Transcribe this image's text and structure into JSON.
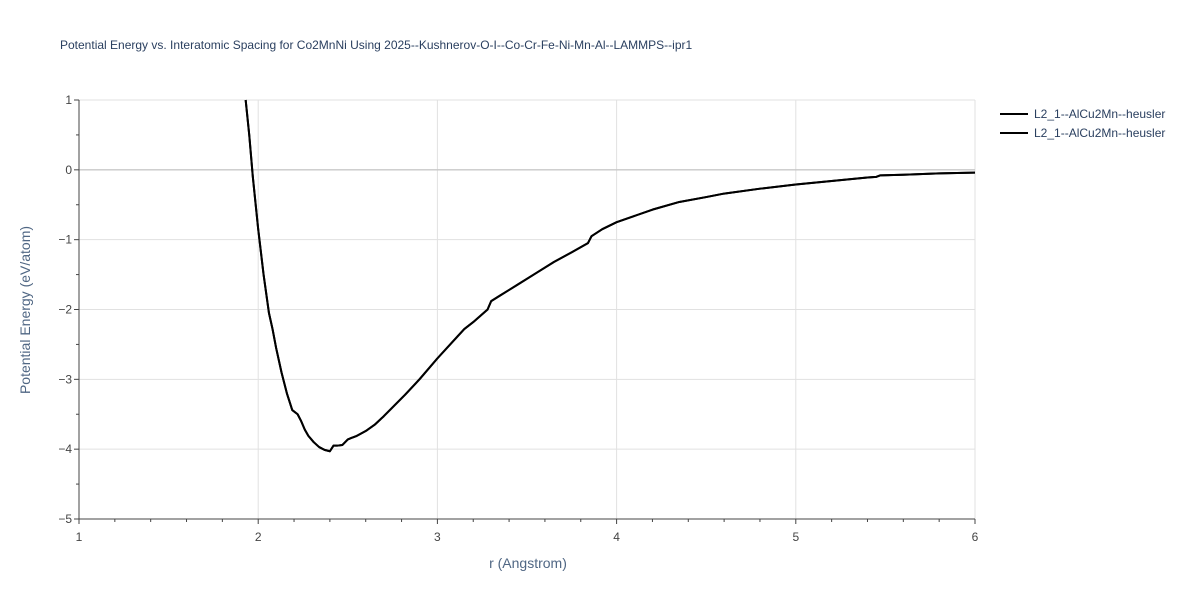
{
  "chart_data": {
    "type": "line",
    "title": "Potential Energy vs. Interatomic Spacing for Co2MnNi Using 2025--Kushnerov-O-I--Co-Cr-Fe-Ni-Mn-Al--LAMMPS--ipr1",
    "xlabel": "r (Angstrom)",
    "ylabel": "Potential Energy (eV/atom)",
    "xlim": [
      1,
      6
    ],
    "ylim": [
      -5,
      1
    ],
    "xticks": [
      1,
      2,
      3,
      4,
      5,
      6
    ],
    "yticks": [
      1,
      0,
      -1,
      -2,
      -3,
      -4,
      -5
    ],
    "xtick_labels": [
      "1",
      "2",
      "3",
      "4",
      "5",
      "6"
    ],
    "ytick_labels": [
      "1",
      "0",
      "−1",
      "−2",
      "−3",
      "−4",
      "−5"
    ],
    "grid": true,
    "legend_position": "top-right",
    "series": [
      {
        "name": "L2_1--AlCu2Mn--heusler",
        "color": "#000000",
        "x": [
          1.93,
          1.95,
          1.97,
          2.0,
          2.03,
          2.06,
          2.08,
          2.1,
          2.13,
          2.16,
          2.19,
          2.22,
          2.24,
          2.26,
          2.28,
          2.31,
          2.34,
          2.37,
          2.4,
          2.42,
          2.44,
          2.47,
          2.5,
          2.52,
          2.55,
          2.6,
          2.65,
          2.7,
          2.75,
          2.82,
          2.9,
          3.0,
          3.1,
          3.15,
          3.2,
          3.28,
          3.3,
          3.35,
          3.45,
          3.55,
          3.65,
          3.75,
          3.84,
          3.86,
          3.92,
          4.0,
          4.1,
          4.2,
          4.35,
          4.5,
          4.6,
          4.8,
          5.0,
          5.2,
          5.4,
          5.45,
          5.47,
          5.6,
          5.8,
          6.0
        ],
        "y": [
          1.0,
          0.5,
          -0.1,
          -0.85,
          -1.5,
          -2.05,
          -2.28,
          -2.55,
          -2.9,
          -3.2,
          -3.44,
          -3.5,
          -3.6,
          -3.72,
          -3.81,
          -3.9,
          -3.97,
          -4.01,
          -4.03,
          -3.95,
          -3.95,
          -3.94,
          -3.86,
          -3.84,
          -3.81,
          -3.74,
          -3.65,
          -3.53,
          -3.4,
          -3.22,
          -3.0,
          -2.7,
          -2.42,
          -2.28,
          -2.18,
          -2.0,
          -1.88,
          -1.8,
          -1.64,
          -1.48,
          -1.32,
          -1.18,
          -1.05,
          -0.95,
          -0.85,
          -0.75,
          -0.66,
          -0.57,
          -0.46,
          -0.39,
          -0.34,
          -0.27,
          -0.21,
          -0.16,
          -0.11,
          -0.1,
          -0.08,
          -0.07,
          -0.05,
          -0.04
        ]
      },
      {
        "name": "L2_1--AlCu2Mn--heusler",
        "color": "#000000",
        "x": [
          1.93,
          1.95,
          1.97,
          2.0,
          2.03,
          2.06,
          2.08,
          2.1,
          2.13,
          2.16,
          2.19,
          2.22,
          2.24,
          2.26,
          2.28,
          2.31,
          2.34,
          2.37,
          2.4,
          2.42,
          2.44,
          2.47,
          2.5,
          2.52,
          2.55,
          2.6,
          2.65,
          2.7,
          2.75,
          2.82,
          2.9,
          3.0,
          3.1,
          3.15,
          3.2,
          3.28,
          3.3,
          3.35,
          3.45,
          3.55,
          3.65,
          3.75,
          3.84,
          3.86,
          3.92,
          4.0,
          4.1,
          4.2,
          4.35,
          4.5,
          4.6,
          4.8,
          5.0,
          5.2,
          5.4,
          5.45,
          5.47,
          5.6,
          5.8,
          6.0
        ],
        "y": [
          1.0,
          0.5,
          -0.1,
          -0.85,
          -1.5,
          -2.05,
          -2.28,
          -2.55,
          -2.9,
          -3.2,
          -3.44,
          -3.5,
          -3.6,
          -3.72,
          -3.81,
          -3.9,
          -3.97,
          -4.01,
          -4.03,
          -3.95,
          -3.95,
          -3.94,
          -3.86,
          -3.84,
          -3.81,
          -3.74,
          -3.65,
          -3.53,
          -3.4,
          -3.22,
          -3.0,
          -2.7,
          -2.42,
          -2.28,
          -2.18,
          -2.0,
          -1.88,
          -1.8,
          -1.64,
          -1.48,
          -1.32,
          -1.18,
          -1.05,
          -0.95,
          -0.85,
          -0.75,
          -0.66,
          -0.57,
          -0.46,
          -0.39,
          -0.34,
          -0.27,
          -0.21,
          -0.16,
          -0.11,
          -0.1,
          -0.08,
          -0.07,
          -0.05,
          -0.04
        ]
      }
    ]
  }
}
